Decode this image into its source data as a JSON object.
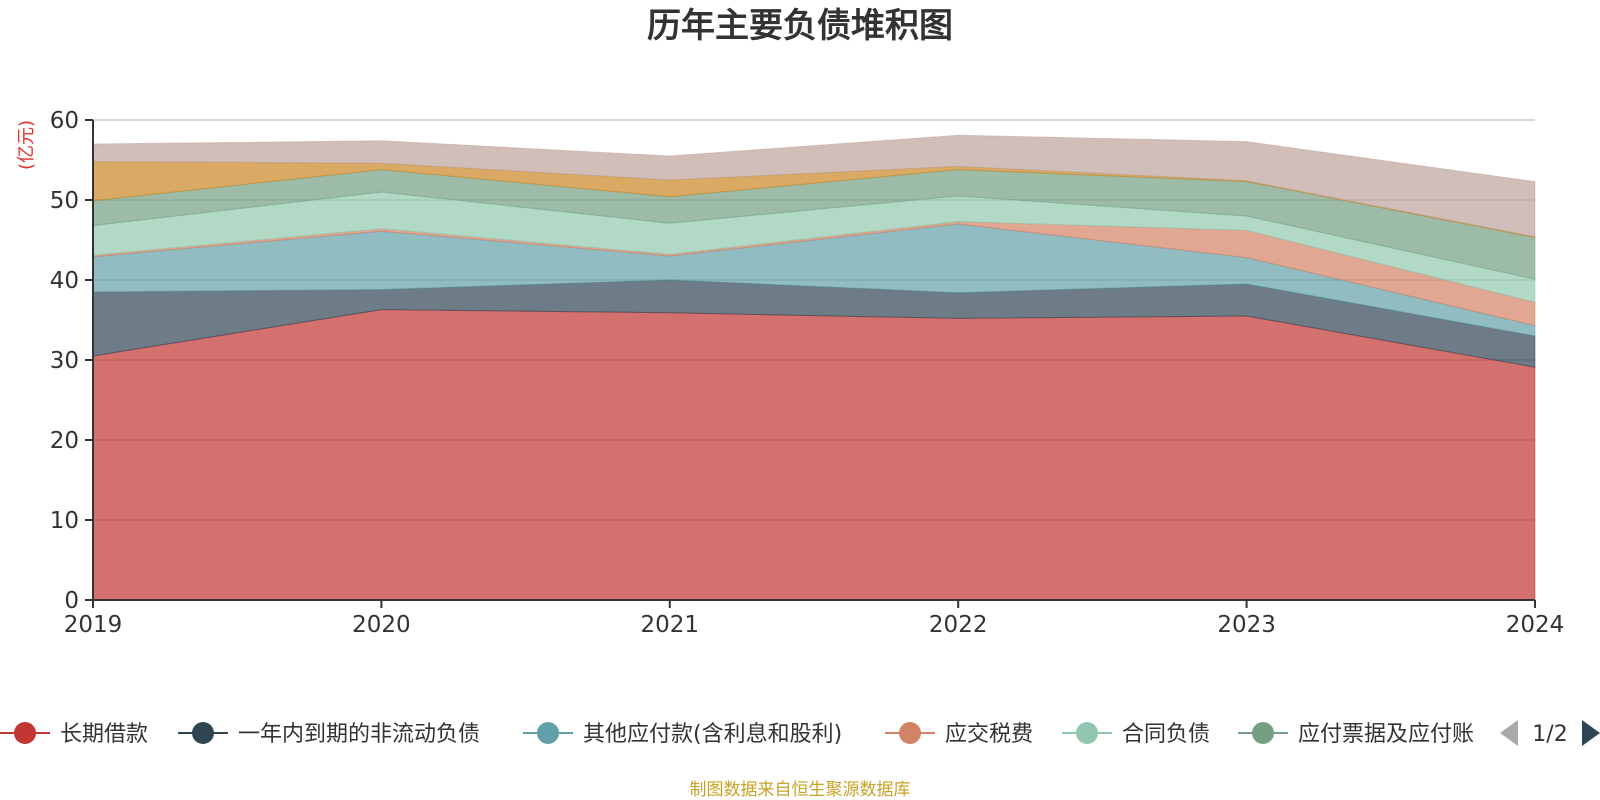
{
  "chart_data": {
    "type": "area",
    "stacked": true,
    "title": "历年主要负债堆积图",
    "y_unit": "(亿元)",
    "x": [
      "2019",
      "2020",
      "2021",
      "2022",
      "2023",
      "2024"
    ],
    "ylim": [
      0,
      60
    ],
    "yticks": [
      "0",
      "10",
      "20",
      "30",
      "40",
      "50",
      "60"
    ],
    "grid": true,
    "series": [
      {
        "name": "长期借款",
        "values": [
          30.5,
          36.3,
          35.9,
          35.2,
          35.5,
          29.1
        ],
        "color": "#c23531"
      },
      {
        "name": "一年内到期的非流动负债",
        "values": [
          8.0,
          2.5,
          4.1,
          3.2,
          4.0,
          3.9
        ],
        "color": "#2f4554"
      },
      {
        "name": "其他应付款(含利息和股利)",
        "values": [
          4.4,
          7.3,
          3.0,
          8.6,
          3.3,
          1.3
        ],
        "color": "#61a0a8"
      },
      {
        "name": "应交税费",
        "values": [
          0.2,
          0.3,
          0.2,
          0.3,
          3.4,
          2.9
        ],
        "color": "#d48265"
      },
      {
        "name": "合同负债",
        "values": [
          3.7,
          4.6,
          3.9,
          3.2,
          1.8,
          2.9
        ],
        "color": "#91c7ae"
      },
      {
        "name": "应付票据及应付账款",
        "values": [
          3.1,
          2.8,
          3.3,
          3.3,
          4.3,
          5.2
        ],
        "color": "#749f83"
      },
      {
        "name": "",
        "values": [
          4.9,
          0.8,
          2.1,
          0.4,
          0.1,
          0.1
        ],
        "color": "#ca8622"
      },
      {
        "name": "",
        "values": [
          2.2,
          2.8,
          3.0,
          3.9,
          4.9,
          6.9
        ],
        "color": "#bda29a"
      }
    ],
    "legend": {
      "items": [
        "长期借款",
        "一年内到期的非流动负债",
        "其他应付款(含利息和股利)",
        "应交税费",
        "合同负债",
        "应付票据及应付账"
      ],
      "page": "1/2",
      "position": "bottom"
    },
    "source_note": "制图数据来自恒生聚源数据库"
  }
}
